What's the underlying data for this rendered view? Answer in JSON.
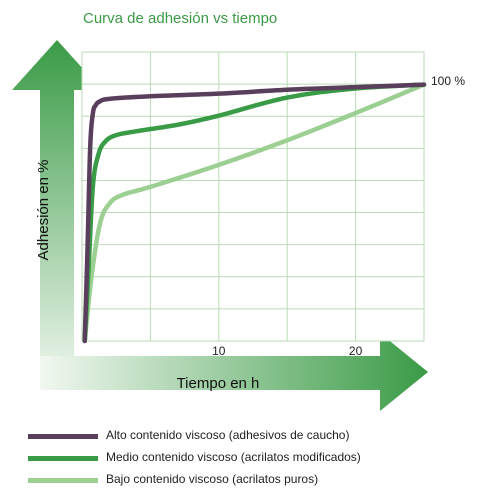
{
  "chart_data": {
    "type": "line",
    "title": "Curva de adhesión vs tiempo",
    "xlabel": "Tiempo en h",
    "ylabel": "Adhesión en %",
    "xlim": [
      0,
      25
    ],
    "ylim": [
      0,
      100
    ],
    "xticks": [
      10,
      20
    ],
    "y_annotation": "100 %",
    "grid": true,
    "legend_position": "bottom",
    "series": [
      {
        "name": "Alto contenido viscoso (adhesivos de caucho)",
        "color": "#5a3f5c",
        "x": [
          0.2,
          0.4,
          0.6,
          0.8,
          1.0,
          1.3,
          2,
          5,
          10,
          15,
          20,
          25
        ],
        "y": [
          0,
          35,
          75,
          88,
          91,
          92.5,
          93.5,
          94.5,
          95.5,
          97,
          98,
          99
        ]
      },
      {
        "name": "Medio contenido viscoso (acrilatos modificados)",
        "color": "#3a9b46",
        "x": [
          0.2,
          0.5,
          0.8,
          1.2,
          1.7,
          2.5,
          4,
          7,
          10,
          15,
          20,
          25
        ],
        "y": [
          0,
          30,
          60,
          72,
          77,
          79.5,
          81,
          83.5,
          87,
          94,
          97.5,
          99
        ]
      },
      {
        "name": "Bajo contenido viscoso (acrilatos puros)",
        "color": "#9ccf92",
        "x": [
          0.2,
          0.7,
          1.3,
          2,
          3,
          5,
          10,
          15,
          20,
          25
        ],
        "y": [
          0,
          25,
          45,
          53,
          56.5,
          59.5,
          68,
          77.5,
          88,
          99
        ]
      }
    ]
  }
}
